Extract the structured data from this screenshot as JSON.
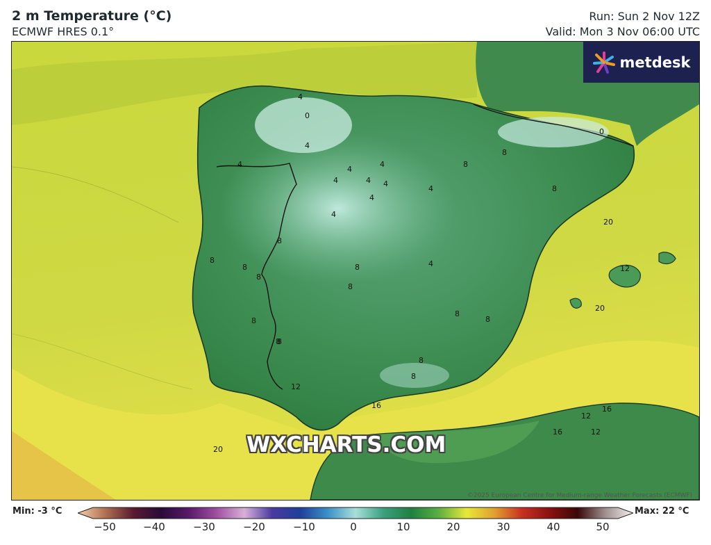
{
  "header": {
    "title": "2 m Temperature (°C)",
    "subtitle": "ECMWF HRES 0.1°",
    "run": "Run: Sun 2 Nov 12Z",
    "valid": "Valid: Mon 3 Nov 06:00 UTC"
  },
  "brand": {
    "name": "metdesk",
    "icon": "metdesk-burst-logo"
  },
  "watermark": "WXCHARTS.COM",
  "copyright": "©2025 European Centre for Medium-range Weather Forecasts (ECMWF)",
  "map": {
    "region": "Iberian Peninsula",
    "contour_labels": [
      "0",
      "0",
      "4",
      "4",
      "4",
      "4",
      "4",
      "4",
      "4",
      "4",
      "4",
      "4",
      "4",
      "4",
      "8",
      "8",
      "8",
      "8",
      "8",
      "8",
      "8",
      "8",
      "8",
      "8",
      "8",
      "8",
      "8",
      "8",
      "8",
      "8",
      "12",
      "12",
      "12",
      "12",
      "16",
      "16",
      "16",
      "20",
      "20",
      "20"
    ]
  },
  "legend": {
    "min_label": "Min: -3 °C",
    "max_label": "Max: 22 °C",
    "ticks": [
      "−50",
      "−40",
      "−30",
      "−20",
      "−10",
      "0",
      "10",
      "20",
      "30",
      "40",
      "50"
    ],
    "colors": {
      "neg50": "#f3cfa8",
      "neg45": "#b07050",
      "neg40": "#5a1a30",
      "neg35": "#2a0a3a",
      "neg30": "#5a1a6a",
      "neg25": "#a050a0",
      "neg20": "#d8b0d8",
      "neg15": "#4a3aa0",
      "neg10": "#1f3f9a",
      "neg5": "#3a90c8",
      "zero": "#a8e0d8",
      "pos5": "#3aa080",
      "pos10": "#1f8040",
      "pos15": "#5ab040",
      "pos20": "#e8e838",
      "pos25": "#e0a030",
      "pos30": "#c83020",
      "pos35": "#8a1010",
      "pos40": "#3a0808",
      "pos45": "#a09090",
      "pos50": "#f6f0ee"
    }
  }
}
